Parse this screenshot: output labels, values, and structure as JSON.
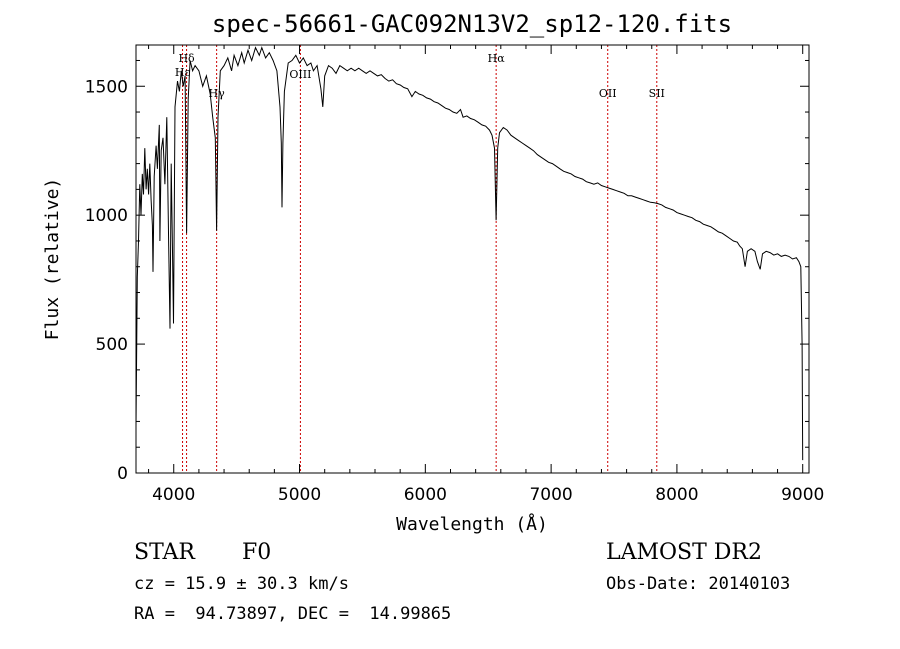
{
  "chart_data": {
    "type": "line",
    "title": "spec-56661-GAC092N13V2_sp12-120.fits",
    "xlabel": "Wavelength (Å)",
    "ylabel": "Flux (relative)",
    "xlim": [
      3700,
      9050
    ],
    "ylim": [
      0,
      1660
    ],
    "x_ticks": [
      4000,
      5000,
      6000,
      7000,
      8000,
      9000
    ],
    "y_ticks": [
      0,
      500,
      1000,
      1500
    ],
    "grid": false,
    "line_color": "#000000",
    "marker_color": "#cc0000",
    "lines": [
      {
        "label": "Hδ",
        "x": 4102
      },
      {
        "label": "Hε",
        "x": 4070
      },
      {
        "label": "Hγ",
        "x": 4341
      },
      {
        "label": "OIII",
        "x": 5007
      },
      {
        "label": "Hα",
        "x": 6563
      },
      {
        "label": "OII",
        "x": 7450
      },
      {
        "label": "SII",
        "x": 7840
      }
    ],
    "spectrum": [
      [
        3700,
        180
      ],
      [
        3710,
        760
      ],
      [
        3720,
        900
      ],
      [
        3730,
        1120
      ],
      [
        3740,
        1000
      ],
      [
        3750,
        1160
      ],
      [
        3760,
        1080
      ],
      [
        3770,
        1260
      ],
      [
        3780,
        1100
      ],
      [
        3790,
        1180
      ],
      [
        3800,
        1080
      ],
      [
        3810,
        1200
      ],
      [
        3820,
        1060
      ],
      [
        3830,
        960
      ],
      [
        3835,
        780
      ],
      [
        3845,
        1150
      ],
      [
        3860,
        1270
      ],
      [
        3870,
        1180
      ],
      [
        3885,
        1350
      ],
      [
        3890,
        900
      ],
      [
        3900,
        1250
      ],
      [
        3915,
        1300
      ],
      [
        3930,
        1120
      ],
      [
        3945,
        1380
      ],
      [
        3960,
        880
      ],
      [
        3970,
        560
      ],
      [
        3980,
        1200
      ],
      [
        3990,
        860
      ],
      [
        3998,
        580
      ],
      [
        4010,
        1420
      ],
      [
        4030,
        1520
      ],
      [
        4045,
        1480
      ],
      [
        4060,
        1560
      ],
      [
        4075,
        1500
      ],
      [
        4090,
        1540
      ],
      [
        4102,
        930
      ],
      [
        4115,
        1450
      ],
      [
        4130,
        1600
      ],
      [
        4150,
        1560
      ],
      [
        4170,
        1580
      ],
      [
        4200,
        1560
      ],
      [
        4230,
        1500
      ],
      [
        4260,
        1540
      ],
      [
        4290,
        1470
      ],
      [
        4310,
        1380
      ],
      [
        4330,
        1300
      ],
      [
        4341,
        940
      ],
      [
        4352,
        1380
      ],
      [
        4370,
        1560
      ],
      [
        4400,
        1580
      ],
      [
        4430,
        1610
      ],
      [
        4460,
        1560
      ],
      [
        4480,
        1620
      ],
      [
        4510,
        1580
      ],
      [
        4540,
        1630
      ],
      [
        4560,
        1590
      ],
      [
        4590,
        1640
      ],
      [
        4620,
        1600
      ],
      [
        4650,
        1650
      ],
      [
        4680,
        1620
      ],
      [
        4700,
        1650
      ],
      [
        4730,
        1610
      ],
      [
        4760,
        1630
      ],
      [
        4790,
        1600
      ],
      [
        4820,
        1560
      ],
      [
        4845,
        1420
      ],
      [
        4855,
        1280
      ],
      [
        4861,
        1030
      ],
      [
        4868,
        1280
      ],
      [
        4880,
        1480
      ],
      [
        4910,
        1590
      ],
      [
        4940,
        1600
      ],
      [
        4970,
        1620
      ],
      [
        5000,
        1590
      ],
      [
        5030,
        1610
      ],
      [
        5060,
        1580
      ],
      [
        5090,
        1590
      ],
      [
        5110,
        1560
      ],
      [
        5140,
        1580
      ],
      [
        5170,
        1490
      ],
      [
        5185,
        1420
      ],
      [
        5200,
        1540
      ],
      [
        5230,
        1580
      ],
      [
        5260,
        1570
      ],
      [
        5290,
        1550
      ],
      [
        5320,
        1580
      ],
      [
        5350,
        1570
      ],
      [
        5380,
        1560
      ],
      [
        5410,
        1570
      ],
      [
        5440,
        1560
      ],
      [
        5470,
        1570
      ],
      [
        5500,
        1560
      ],
      [
        5530,
        1550
      ],
      [
        5560,
        1560
      ],
      [
        5590,
        1550
      ],
      [
        5620,
        1540
      ],
      [
        5650,
        1545
      ],
      [
        5680,
        1530
      ],
      [
        5710,
        1520
      ],
      [
        5740,
        1525
      ],
      [
        5770,
        1510
      ],
      [
        5800,
        1505
      ],
      [
        5830,
        1495
      ],
      [
        5860,
        1490
      ],
      [
        5893,
        1460
      ],
      [
        5920,
        1480
      ],
      [
        5950,
        1470
      ],
      [
        5980,
        1465
      ],
      [
        6010,
        1455
      ],
      [
        6040,
        1450
      ],
      [
        6070,
        1440
      ],
      [
        6100,
        1435
      ],
      [
        6130,
        1425
      ],
      [
        6160,
        1415
      ],
      [
        6190,
        1410
      ],
      [
        6220,
        1400
      ],
      [
        6250,
        1395
      ],
      [
        6280,
        1410
      ],
      [
        6300,
        1380
      ],
      [
        6330,
        1385
      ],
      [
        6360,
        1375
      ],
      [
        6390,
        1370
      ],
      [
        6420,
        1360
      ],
      [
        6450,
        1350
      ],
      [
        6480,
        1345
      ],
      [
        6510,
        1330
      ],
      [
        6530,
        1310
      ],
      [
        6550,
        1260
      ],
      [
        6563,
        980
      ],
      [
        6575,
        1260
      ],
      [
        6590,
        1320
      ],
      [
        6620,
        1340
      ],
      [
        6650,
        1330
      ],
      [
        6680,
        1310
      ],
      [
        6710,
        1300
      ],
      [
        6740,
        1290
      ],
      [
        6770,
        1280
      ],
      [
        6800,
        1270
      ],
      [
        6830,
        1260
      ],
      [
        6860,
        1250
      ],
      [
        6890,
        1235
      ],
      [
        6920,
        1225
      ],
      [
        6950,
        1215
      ],
      [
        6980,
        1205
      ],
      [
        7010,
        1200
      ],
      [
        7040,
        1190
      ],
      [
        7070,
        1180
      ],
      [
        7100,
        1170
      ],
      [
        7130,
        1165
      ],
      [
        7160,
        1160
      ],
      [
        7190,
        1150
      ],
      [
        7220,
        1145
      ],
      [
        7250,
        1140
      ],
      [
        7280,
        1130
      ],
      [
        7310,
        1125
      ],
      [
        7340,
        1120
      ],
      [
        7370,
        1125
      ],
      [
        7400,
        1115
      ],
      [
        7430,
        1110
      ],
      [
        7460,
        1105
      ],
      [
        7490,
        1100
      ],
      [
        7520,
        1095
      ],
      [
        7550,
        1090
      ],
      [
        7580,
        1085
      ],
      [
        7610,
        1075
      ],
      [
        7640,
        1075
      ],
      [
        7670,
        1070
      ],
      [
        7700,
        1065
      ],
      [
        7730,
        1060
      ],
      [
        7760,
        1055
      ],
      [
        7790,
        1050
      ],
      [
        7820,
        1048
      ],
      [
        7850,
        1045
      ],
      [
        7880,
        1040
      ],
      [
        7910,
        1030
      ],
      [
        7940,
        1025
      ],
      [
        7970,
        1020
      ],
      [
        8000,
        1010
      ],
      [
        8030,
        1005
      ],
      [
        8060,
        1000
      ],
      [
        8090,
        995
      ],
      [
        8120,
        990
      ],
      [
        8150,
        980
      ],
      [
        8180,
        975
      ],
      [
        8210,
        965
      ],
      [
        8240,
        960
      ],
      [
        8270,
        955
      ],
      [
        8300,
        945
      ],
      [
        8330,
        935
      ],
      [
        8360,
        930
      ],
      [
        8390,
        920
      ],
      [
        8420,
        910
      ],
      [
        8450,
        900
      ],
      [
        8480,
        895
      ],
      [
        8500,
        880
      ],
      [
        8520,
        870
      ],
      [
        8542,
        800
      ],
      [
        8560,
        860
      ],
      [
        8590,
        870
      ],
      [
        8620,
        860
      ],
      [
        8640,
        820
      ],
      [
        8662,
        790
      ],
      [
        8680,
        850
      ],
      [
        8710,
        860
      ],
      [
        8740,
        855
      ],
      [
        8770,
        845
      ],
      [
        8800,
        850
      ],
      [
        8830,
        840
      ],
      [
        8860,
        845
      ],
      [
        8890,
        840
      ],
      [
        8920,
        830
      ],
      [
        8950,
        835
      ],
      [
        8970,
        820
      ],
      [
        8985,
        800
      ],
      [
        8995,
        500
      ],
      [
        9000,
        50
      ]
    ]
  },
  "info": {
    "object_class": "STAR",
    "subclass": "F0",
    "survey": "LAMOST DR2",
    "cz": "cz = 15.9 ± 30.3 km/s",
    "obs_date": "Obs-Date: 20140103",
    "coords": "RA =  94.73897, DEC =  14.99865"
  }
}
